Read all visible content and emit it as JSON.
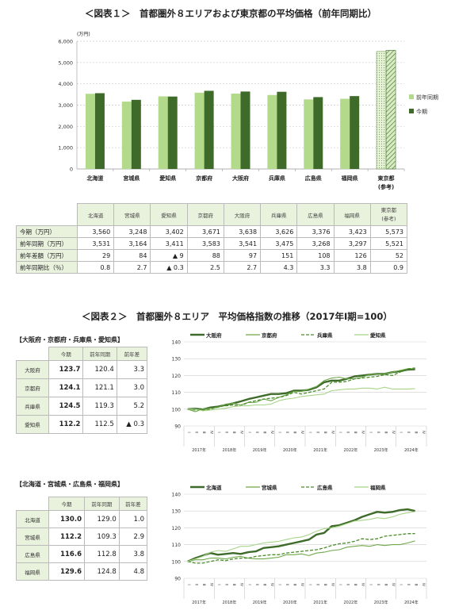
{
  "figure1": {
    "title": "＜図表１＞　首都圏外８エリアおよび東京都の平均価格（前年同期比）",
    "unit_label": "(万円)",
    "chart_data": {
      "type": "bar",
      "categories": [
        "北海道",
        "宮城県",
        "愛知県",
        "京都府",
        "大阪府",
        "兵庫県",
        "広島県",
        "福岡県",
        "東京都"
      ],
      "category_sub": [
        "",
        "",
        "",
        "",
        "",
        "",
        "",
        "",
        "(参考)"
      ],
      "series": [
        {
          "name": "前年同期",
          "values": [
            3531,
            3164,
            3411,
            3583,
            3541,
            3475,
            3268,
            3297,
            5521
          ]
        },
        {
          "name": "今期",
          "values": [
            3560,
            3248,
            3402,
            3671,
            3638,
            3626,
            3376,
            3423,
            5573
          ]
        }
      ],
      "ylim": [
        0,
        6000
      ],
      "yticks": [
        "0",
        "1,000",
        "2,000",
        "3,000",
        "4,000",
        "5,000",
        "6,000"
      ],
      "legend_position": "right",
      "grid": true,
      "colors": {
        "prev": "#b3d98b",
        "curr": "#3e6b2a",
        "tokyo_fill": "#dfeecb"
      }
    },
    "table": {
      "headers": [
        "北海道",
        "宮城県",
        "愛知県",
        "京都府",
        "大阪府",
        "兵庫県",
        "広島県",
        "福岡県",
        "東京都\n(参考)"
      ],
      "rows": [
        {
          "label": "今期（万円）",
          "values": [
            "3,560",
            "3,248",
            "3,402",
            "3,671",
            "3,638",
            "3,626",
            "3,376",
            "3,423",
            "5,573"
          ]
        },
        {
          "label": "前年同期（万円）",
          "values": [
            "3,531",
            "3,164",
            "3,411",
            "3,583",
            "3,541",
            "3,475",
            "3,268",
            "3,297",
            "5,521"
          ]
        },
        {
          "label": "前年差額（万円）",
          "values": [
            "29",
            "84",
            "▲ 9",
            "88",
            "97",
            "151",
            "108",
            "126",
            "52"
          ]
        },
        {
          "label": "前年同期比（％）",
          "values": [
            "0.8",
            "2.7",
            "▲ 0.3",
            "2.5",
            "2.7",
            "4.3",
            "3.3",
            "3.8",
            "0.9"
          ]
        }
      ]
    }
  },
  "figure2": {
    "title": "＜図表２＞　首都圏外８エリア　平均価格指数の推移（2017年Ⅰ期=100）",
    "groupA": {
      "subtitle": "【大阪府・京都府・兵庫県・愛知県】",
      "table": {
        "headers": [
          "今期",
          "前年同期",
          "前年差"
        ],
        "rows": [
          {
            "label": "大阪府",
            "values": [
              "123.7",
              "120.4",
              "3.3"
            ]
          },
          {
            "label": "京都府",
            "values": [
              "124.1",
              "121.1",
              "3.0"
            ]
          },
          {
            "label": "兵庫県",
            "values": [
              "124.5",
              "119.3",
              "5.2"
            ]
          },
          {
            "label": "愛知県",
            "values": [
              "112.2",
              "112.5",
              "▲ 0.3"
            ]
          }
        ]
      },
      "chart_data": {
        "type": "line",
        "ylim": [
          90,
          140
        ],
        "yticks": [
          "90",
          "100",
          "110",
          "120",
          "130",
          "140"
        ],
        "years": [
          "2017年",
          "2018年",
          "2019年",
          "2020年",
          "2021年",
          "2022年",
          "2023年",
          "2024年"
        ],
        "quarters": [
          "Ⅰ",
          "Ⅱ",
          "Ⅲ",
          "Ⅳ"
        ],
        "series": [
          {
            "name": "大阪府",
            "style": "thick",
            "color": "#3e6b2a",
            "values": [
              100,
              100.3,
              99.8,
              101,
              101.5,
              102.5,
              103.5,
              104.6,
              106,
              107,
              108,
              109,
              109,
              109.5,
              111,
              111,
              111.5,
              113,
              116,
              117,
              117,
              118,
              119.5,
              120,
              120.5,
              121,
              121,
              122,
              122.5,
              123.5,
              123.7
            ]
          },
          {
            "name": "京都府",
            "style": "thin",
            "color": "#6ea84a",
            "values": [
              100,
              98.5,
              100,
              100.5,
              101,
              103,
              103.5,
              102.5,
              104,
              104,
              106,
              105,
              107,
              108.5,
              110.5,
              110.5,
              112,
              113.5,
              117,
              118.5,
              119,
              118,
              118,
              119,
              120.5,
              121,
              121,
              122,
              123,
              124,
              124.1
            ]
          },
          {
            "name": "兵庫県",
            "style": "dashed",
            "color": "#4a8c2a",
            "values": [
              100,
              99.5,
              99.5,
              100,
              101.5,
              102,
              102.5,
              102,
              104,
              105,
              106,
              106.5,
              107,
              108,
              110,
              109,
              110,
              111,
              112,
              116,
              116,
              116.5,
              118,
              118.5,
              119,
              119.5,
              120.5,
              120,
              122,
              124,
              124.5
            ]
          },
          {
            "name": "愛知県",
            "style": "thin",
            "color": "#a8d48a",
            "values": [
              100,
              100,
              99,
              99.5,
              100,
              100.5,
              101.5,
              102,
              102,
              102.5,
              102.5,
              103,
              105,
              106,
              106.5,
              107.5,
              108,
              108.5,
              109,
              111,
              111.5,
              112,
              112,
              112.5,
              112.5,
              112,
              113,
              112,
              112,
              112,
              112.2
            ]
          }
        ]
      }
    },
    "groupB": {
      "subtitle": "【北海道・宮城県・広島県・福岡県】",
      "table": {
        "headers": [
          "今期",
          "前年同期",
          "前年差"
        ],
        "rows": [
          {
            "label": "北海道",
            "values": [
              "130.0",
              "129.0",
              "1.0"
            ]
          },
          {
            "label": "宮城県",
            "values": [
              "112.2",
              "109.3",
              "2.9"
            ]
          },
          {
            "label": "広島県",
            "values": [
              "116.6",
              "112.8",
              "3.8"
            ]
          },
          {
            "label": "福岡県",
            "values": [
              "129.6",
              "124.8",
              "4.8"
            ]
          }
        ]
      },
      "chart_data": {
        "type": "line",
        "ylim": [
          90,
          140
        ],
        "yticks": [
          "90",
          "100",
          "110",
          "120",
          "130",
          "140"
        ],
        "years": [
          "2017年",
          "2018年",
          "2019年",
          "2020年",
          "2021年",
          "2022年",
          "2023年",
          "2024年"
        ],
        "quarters": [
          "Ⅰ",
          "Ⅱ",
          "Ⅲ",
          "Ⅳ"
        ],
        "series": [
          {
            "name": "北海道",
            "style": "thick",
            "color": "#3e6b2a",
            "values": [
              100,
              102,
              103.5,
              105,
              104,
              104.5,
              105,
              104.5,
              105.5,
              106,
              108,
              108.5,
              109,
              110,
              111,
              112,
              113,
              116,
              117,
              121,
              121.5,
              123,
              124.5,
              126.5,
              128,
              129.5,
              129,
              129.5,
              130.5,
              131,
              130
            ]
          },
          {
            "name": "宮城県",
            "style": "thin",
            "color": "#6ea84a",
            "values": [
              100,
              101,
              101,
              102,
              102,
              101.5,
              102.5,
              103,
              102,
              101.5,
              101.5,
              102,
              102.5,
              104,
              104,
              104.5,
              103.5,
              105,
              105.5,
              106.5,
              107,
              108.5,
              109,
              109.5,
              109,
              110,
              109.5,
              110,
              110,
              111,
              112.2
            ]
          },
          {
            "name": "広島県",
            "style": "dashed",
            "color": "#4a8c2a",
            "values": [
              100,
              99,
              99,
              100,
              101,
              100.5,
              101.5,
              102,
              102,
              103,
              103.5,
              104,
              104,
              105,
              105.5,
              106,
              106.5,
              107,
              108,
              109.5,
              110.5,
              111,
              112,
              113.5,
              113,
              113.5,
              115,
              115.5,
              116,
              116.5,
              116.6
            ]
          },
          {
            "name": "福岡県",
            "style": "thin",
            "color": "#a8d48a",
            "values": [
              100,
              101.5,
              103,
              105.5,
              106.5,
              106,
              107.5,
              109,
              109,
              110,
              111,
              111.5,
              112,
              113,
              114,
              114.5,
              116,
              118,
              119.5,
              120,
              121,
              122.5,
              124,
              124.5,
              125,
              126,
              125.5,
              126.5,
              128,
              129,
              129.6
            ]
          }
        ]
      }
    }
  }
}
